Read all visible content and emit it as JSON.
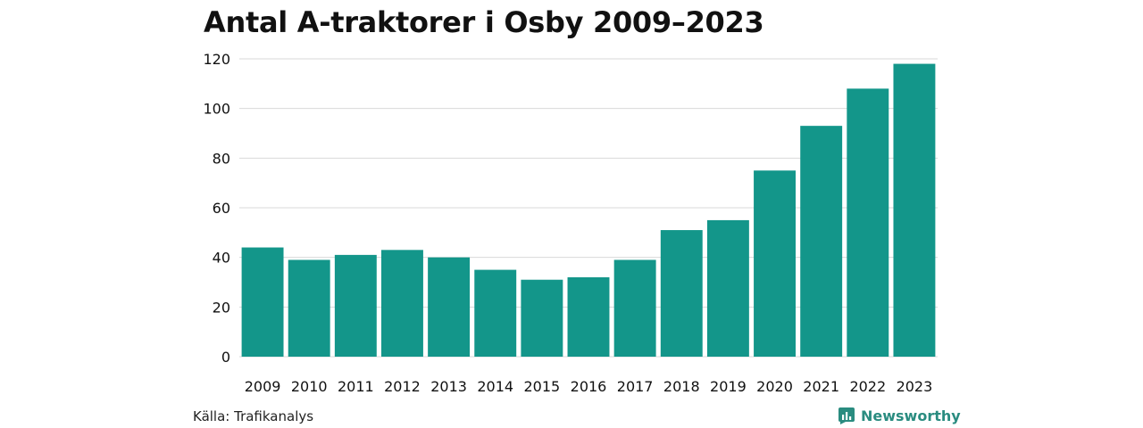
{
  "colors": {
    "bar": "#13968a",
    "grid": "#d9d9d9",
    "text": "#111111",
    "brand": "#2a8c80"
  },
  "source_text": "Källa: Trafikanalys",
  "brand_name": "Newsworthy",
  "chart_data": {
    "type": "bar",
    "title": "Antal A-traktorer i Osby 2009–2023",
    "xlabel": "",
    "ylabel": "",
    "categories": [
      "2009",
      "2010",
      "2011",
      "2012",
      "2013",
      "2014",
      "2015",
      "2016",
      "2017",
      "2018",
      "2019",
      "2020",
      "2021",
      "2022",
      "2023"
    ],
    "values": [
      44,
      39,
      41,
      43,
      40,
      35,
      31,
      32,
      39,
      51,
      55,
      75,
      93,
      108,
      118
    ],
    "ylim": [
      0,
      120
    ],
    "yticks": [
      0,
      20,
      40,
      60,
      80,
      100,
      120
    ],
    "grid": true
  }
}
